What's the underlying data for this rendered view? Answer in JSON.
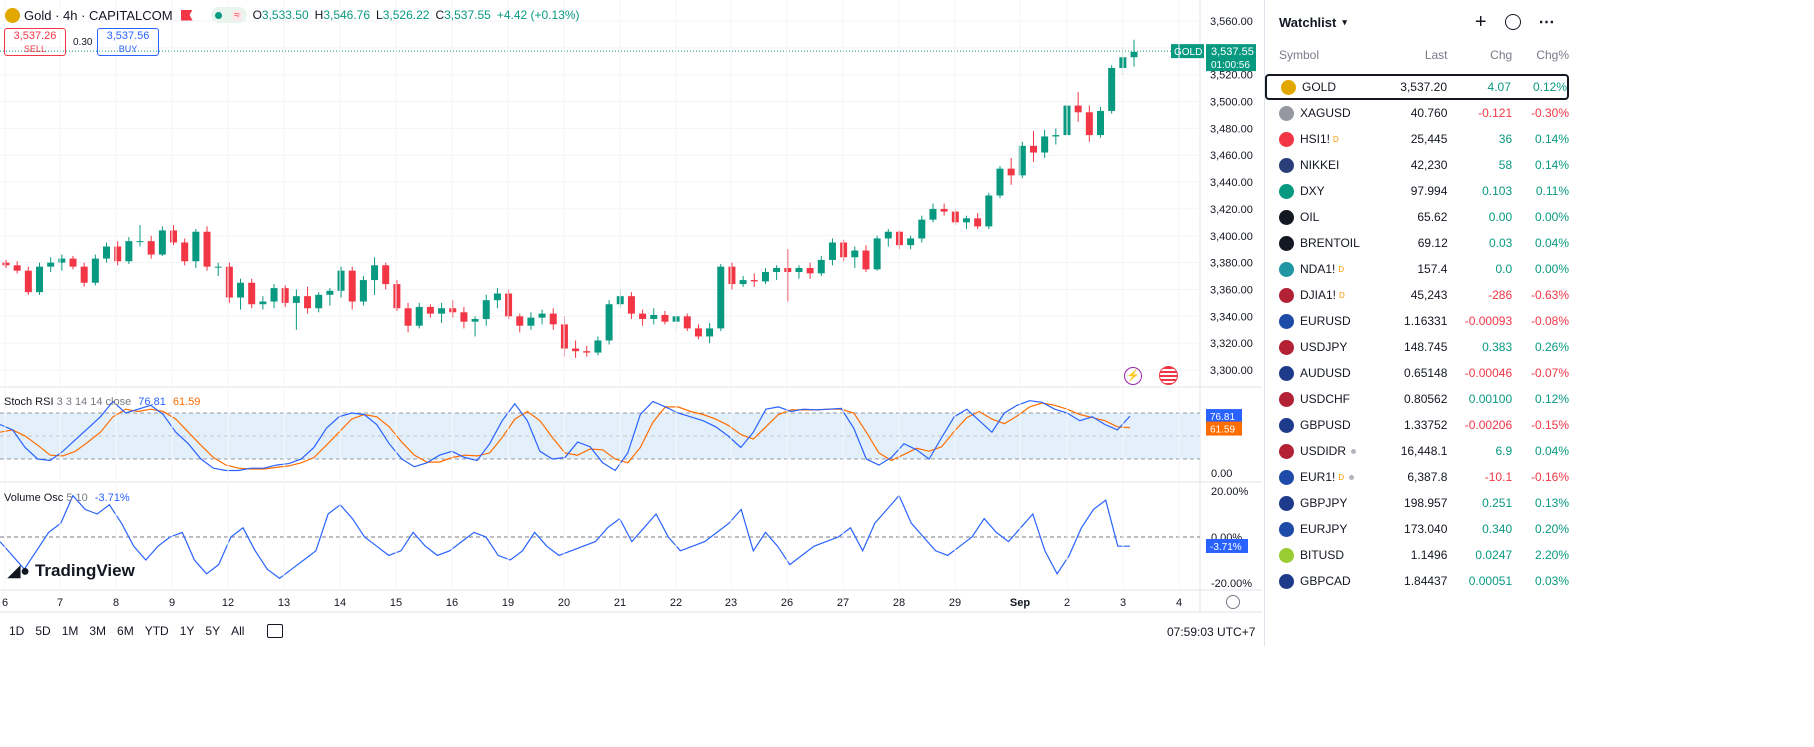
{
  "header": {
    "title": "Gold · 4h · CAPITALCOM",
    "open_label": "O",
    "open": "3,533.50",
    "high_label": "H",
    "high": "3,546.76",
    "low_label": "L",
    "low": "3,526.22",
    "close_label": "C",
    "close": "3,537.55",
    "change": "+4.42 (+0.13%)"
  },
  "trade": {
    "sell_price": "3,537.26",
    "sell_label": "SELL",
    "spread": "0.30",
    "buy_price": "3,537.56",
    "buy_label": "BUY"
  },
  "price_axis": {
    "ticks": [
      "3,560.00",
      "3,540.00",
      "3,520.00",
      "3,500.00",
      "3,480.00",
      "3,460.00",
      "3,440.00",
      "3,420.00",
      "3,400.00",
      "3,380.00",
      "3,360.00",
      "3,340.00",
      "3,320.00",
      "3,300.00"
    ],
    "last_symbol": "GOLD",
    "last_price": "3,537.55",
    "countdown": "01:00:56"
  },
  "stoch": {
    "label": "Stoch RSI",
    "params": "3 3 14 14 close",
    "k": "76.81",
    "d": "61.59",
    "zero": "0.00"
  },
  "vol": {
    "label": "Volume Osc",
    "params": "5 10",
    "value": "-3.71%",
    "top": "20.00%",
    "mid": "0.00%",
    "bottom": "-20.00%"
  },
  "brand": "TradingView",
  "time_axis": [
    "6",
    "7",
    "8",
    "9",
    "12",
    "13",
    "14",
    "15",
    "16",
    "19",
    "20",
    "21",
    "22",
    "23",
    "26",
    "27",
    "28",
    "29",
    "Sep",
    "2",
    "3",
    "4"
  ],
  "timeframes": [
    "1D",
    "5D",
    "1M",
    "3M",
    "6M",
    "YTD",
    "1Y",
    "5Y",
    "All"
  ],
  "clock": "07:59:03 UTC+7",
  "watchlist": {
    "title": "Watchlist",
    "columns": {
      "symbol": "Symbol",
      "last": "Last",
      "chg": "Chg",
      "pct": "Chg%"
    },
    "rows": [
      {
        "sym": "GOLD",
        "last": "3,537.20",
        "chg": "4.07",
        "pct": "0.12%",
        "dir": "up",
        "icon": "#e0a800",
        "selected": true
      },
      {
        "sym": "XAGUSD",
        "last": "40.760",
        "chg": "-0.121",
        "pct": "-0.30%",
        "dir": "dn",
        "icon": "#9598a1"
      },
      {
        "sym": "HSI1!",
        "last": "25,445",
        "chg": "36",
        "pct": "0.14%",
        "dir": "up",
        "icon": "#f23645",
        "sup": "D"
      },
      {
        "sym": "NIKKEI",
        "last": "42,230",
        "chg": "58",
        "pct": "0.14%",
        "dir": "up",
        "icon": "#2a3f7a"
      },
      {
        "sym": "DXY",
        "last": "97.994",
        "chg": "0.103",
        "pct": "0.11%",
        "dir": "up",
        "icon": "#089981"
      },
      {
        "sym": "OIL",
        "last": "65.62",
        "chg": "0.00",
        "pct": "0.00%",
        "dir": "up",
        "icon": "#131722"
      },
      {
        "sym": "BRENTOIL",
        "last": "69.12",
        "chg": "0.03",
        "pct": "0.04%",
        "dir": "up",
        "icon": "#131722"
      },
      {
        "sym": "NDA1!",
        "last": "157.4",
        "chg": "0.0",
        "pct": "0.00%",
        "dir": "up",
        "icon": "#2196a3",
        "sup": "D"
      },
      {
        "sym": "DJIA1!",
        "last": "45,243",
        "chg": "-286",
        "pct": "-0.63%",
        "dir": "dn",
        "icon": "#b22234",
        "sup": "D"
      },
      {
        "sym": "EURUSD",
        "last": "1.16331",
        "chg": "-0.00093",
        "pct": "-0.08%",
        "dir": "dn",
        "icon": "#1e4aa8"
      },
      {
        "sym": "USDJPY",
        "last": "148.745",
        "chg": "0.383",
        "pct": "0.26%",
        "dir": "up",
        "icon": "#b22234"
      },
      {
        "sym": "AUDUSD",
        "last": "0.65148",
        "chg": "-0.00046",
        "pct": "-0.07%",
        "dir": "dn",
        "icon": "#1e3a8a"
      },
      {
        "sym": "USDCHF",
        "last": "0.80562",
        "chg": "0.00100",
        "pct": "0.12%",
        "dir": "up",
        "icon": "#b22234"
      },
      {
        "sym": "GBPUSD",
        "last": "1.33752",
        "chg": "-0.00206",
        "pct": "-0.15%",
        "dir": "dn",
        "icon": "#1e3a8a"
      },
      {
        "sym": "USDIDR",
        "last": "16,448.1",
        "chg": "6.9",
        "pct": "0.04%",
        "dir": "up",
        "icon": "#b22234",
        "dot": true
      },
      {
        "sym": "EUR1!",
        "last": "6,387.8",
        "chg": "-10.1",
        "pct": "-0.16%",
        "dir": "dn",
        "icon": "#1e4aa8",
        "sup": "D",
        "dot": true
      },
      {
        "sym": "GBPJPY",
        "last": "198.957",
        "chg": "0.251",
        "pct": "0.13%",
        "dir": "up",
        "icon": "#1e3a8a"
      },
      {
        "sym": "EURJPY",
        "last": "173.040",
        "chg": "0.340",
        "pct": "0.20%",
        "dir": "up",
        "icon": "#1e4aa8"
      },
      {
        "sym": "BITUSD",
        "last": "1.1496",
        "chg": "0.0247",
        "pct": "2.20%",
        "dir": "up",
        "icon": "#9acd32"
      },
      {
        "sym": "GBPCAD",
        "last": "1.84437",
        "chg": "0.00051",
        "pct": "0.03%",
        "dir": "up",
        "icon": "#1e3a8a"
      }
    ]
  },
  "colors": {
    "up": "#089981",
    "down": "#f23645",
    "k_line": "#2962ff",
    "d_line": "#ff6d00",
    "band": "#e3f0fc"
  },
  "chart_data": {
    "type": "candlestick",
    "ylim": [
      3290,
      3565
    ],
    "candles": [
      [
        3380,
        3382,
        3376,
        3378
      ],
      [
        3378,
        3381,
        3372,
        3374
      ],
      [
        3374,
        3377,
        3356,
        3358
      ],
      [
        3358,
        3380,
        3356,
        3377
      ],
      [
        3377,
        3384,
        3373,
        3380
      ],
      [
        3380,
        3386,
        3374,
        3383
      ],
      [
        3383,
        3385,
        3375,
        3377
      ],
      [
        3377,
        3380,
        3362,
        3365
      ],
      [
        3365,
        3386,
        3363,
        3383
      ],
      [
        3383,
        3395,
        3380,
        3392
      ],
      [
        3392,
        3396,
        3378,
        3381
      ],
      [
        3381,
        3399,
        3379,
        3396
      ],
      [
        3396,
        3408,
        3392,
        3396
      ],
      [
        3396,
        3400,
        3383,
        3386
      ],
      [
        3386,
        3407,
        3385,
        3404
      ],
      [
        3404,
        3408,
        3393,
        3395
      ],
      [
        3395,
        3398,
        3378,
        3381
      ],
      [
        3381,
        3405,
        3376,
        3403
      ],
      [
        3403,
        3407,
        3374,
        3377
      ],
      [
        3377,
        3380,
        3370,
        3377
      ],
      [
        3377,
        3380,
        3350,
        3354
      ],
      [
        3354,
        3368,
        3345,
        3365
      ],
      [
        3365,
        3368,
        3346,
        3349
      ],
      [
        3349,
        3355,
        3345,
        3351
      ],
      [
        3351,
        3364,
        3346,
        3361
      ],
      [
        3361,
        3363,
        3347,
        3350
      ],
      [
        3350,
        3360,
        3330,
        3355
      ],
      [
        3355,
        3362,
        3342,
        3346
      ],
      [
        3346,
        3358,
        3343,
        3356
      ],
      [
        3356,
        3361,
        3348,
        3359
      ],
      [
        3359,
        3377,
        3354,
        3374
      ],
      [
        3374,
        3377,
        3345,
        3351
      ],
      [
        3351,
        3370,
        3348,
        3367
      ],
      [
        3367,
        3384,
        3356,
        3378
      ],
      [
        3378,
        3380,
        3360,
        3364
      ],
      [
        3364,
        3367,
        3344,
        3346
      ],
      [
        3346,
        3350,
        3328,
        3333
      ],
      [
        3333,
        3350,
        3331,
        3347
      ],
      [
        3347,
        3349,
        3339,
        3342
      ],
      [
        3342,
        3350,
        3335,
        3346
      ],
      [
        3346,
        3352,
        3339,
        3343
      ],
      [
        3343,
        3347,
        3331,
        3336
      ],
      [
        3336,
        3340,
        3325,
        3338
      ],
      [
        3338,
        3356,
        3333,
        3352
      ],
      [
        3352,
        3361,
        3346,
        3357
      ],
      [
        3357,
        3360,
        3338,
        3340
      ],
      [
        3340,
        3342,
        3328,
        3333
      ],
      [
        3333,
        3343,
        3330,
        3339
      ],
      [
        3339,
        3345,
        3334,
        3342
      ],
      [
        3342,
        3346,
        3330,
        3334
      ],
      [
        3334,
        3340,
        3310,
        3316
      ],
      [
        3316,
        3322,
        3309,
        3314
      ],
      [
        3314,
        3318,
        3310,
        3313
      ],
      [
        3313,
        3325,
        3311,
        3322
      ],
      [
        3322,
        3352,
        3319,
        3349
      ],
      [
        3349,
        3360,
        3346,
        3355
      ],
      [
        3355,
        3358,
        3338,
        3342
      ],
      [
        3342,
        3345,
        3333,
        3338
      ],
      [
        3338,
        3346,
        3334,
        3341
      ],
      [
        3341,
        3344,
        3334,
        3336
      ],
      [
        3336,
        3343,
        3329,
        3340
      ],
      [
        3340,
        3342,
        3329,
        3331
      ],
      [
        3331,
        3334,
        3323,
        3325
      ],
      [
        3325,
        3335,
        3320,
        3331
      ],
      [
        3331,
        3379,
        3329,
        3377
      ],
      [
        3377,
        3380,
        3360,
        3364
      ],
      [
        3364,
        3370,
        3362,
        3367
      ],
      [
        3367,
        3372,
        3362,
        3366
      ],
      [
        3366,
        3376,
        3364,
        3373
      ],
      [
        3373,
        3378,
        3367,
        3376
      ],
      [
        3376,
        3390,
        3351,
        3373
      ],
      [
        3373,
        3378,
        3368,
        3376
      ],
      [
        3376,
        3380,
        3368,
        3372
      ],
      [
        3372,
        3385,
        3370,
        3382
      ],
      [
        3382,
        3398,
        3378,
        3395
      ],
      [
        3395,
        3397,
        3381,
        3384
      ],
      [
        3384,
        3392,
        3376,
        3389
      ],
      [
        3389,
        3393,
        3373,
        3375
      ],
      [
        3375,
        3400,
        3374,
        3398
      ],
      [
        3398,
        3405,
        3392,
        3403
      ],
      [
        3403,
        3404,
        3390,
        3393
      ],
      [
        3393,
        3400,
        3390,
        3398
      ],
      [
        3398,
        3415,
        3395,
        3412
      ],
      [
        3412,
        3424,
        3410,
        3420
      ],
      [
        3420,
        3424,
        3415,
        3418
      ],
      [
        3418,
        3420,
        3408,
        3410
      ],
      [
        3410,
        3415,
        3405,
        3413
      ],
      [
        3413,
        3417,
        3405,
        3407
      ],
      [
        3407,
        3432,
        3405,
        3430
      ],
      [
        3430,
        3452,
        3428,
        3450
      ],
      [
        3450,
        3458,
        3438,
        3445
      ],
      [
        3445,
        3470,
        3443,
        3467
      ],
      [
        3467,
        3478,
        3455,
        3462
      ],
      [
        3462,
        3479,
        3458,
        3474
      ],
      [
        3474,
        3480,
        3468,
        3475
      ],
      [
        3475,
        3500,
        3473,
        3497
      ],
      [
        3497,
        3507,
        3485,
        3492
      ],
      [
        3492,
        3497,
        3470,
        3475
      ],
      [
        3475,
        3496,
        3473,
        3493
      ],
      [
        3493,
        3527,
        3491,
        3525
      ],
      [
        3525,
        3540,
        3520,
        3533
      ],
      [
        3533,
        3546,
        3526,
        3537
      ]
    ],
    "stoch_k": [
      65,
      58,
      35,
      20,
      18,
      30,
      45,
      60,
      75,
      95,
      80,
      85,
      90,
      78,
      55,
      40,
      20,
      8,
      5,
      5,
      8,
      8,
      12,
      14,
      20,
      35,
      60,
      75,
      80,
      78,
      65,
      40,
      20,
      10,
      15,
      25,
      30,
      22,
      18,
      40,
      70,
      92,
      70,
      30,
      20,
      22,
      42,
      36,
      15,
      5,
      28,
      78,
      95,
      88,
      80,
      75,
      70,
      62,
      50,
      35,
      55,
      85,
      88,
      82,
      85,
      84,
      85,
      86,
      60,
      20,
      12,
      22,
      40,
      32,
      20,
      48,
      75,
      85,
      70,
      55,
      80,
      90,
      96,
      94,
      85,
      80,
      70,
      75,
      65,
      58,
      76
    ],
    "stoch_d": [
      55,
      58,
      50,
      38,
      25,
      24,
      30,
      42,
      55,
      75,
      85,
      82,
      85,
      82,
      72,
      55,
      38,
      22,
      12,
      8,
      7,
      7,
      9,
      11,
      15,
      22,
      38,
      55,
      72,
      78,
      75,
      62,
      42,
      25,
      16,
      16,
      22,
      25,
      24,
      28,
      48,
      72,
      82,
      70,
      48,
      28,
      25,
      33,
      32,
      20,
      15,
      35,
      68,
      88,
      88,
      82,
      78,
      72,
      64,
      52,
      46,
      62,
      78,
      84,
      84,
      84,
      85,
      85,
      80,
      55,
      28,
      18,
      26,
      34,
      30,
      36,
      56,
      74,
      82,
      72,
      66,
      76,
      88,
      93,
      90,
      85,
      78,
      74,
      70,
      62,
      61
    ],
    "volume_osc": [
      -2,
      -8,
      -14,
      -6,
      2,
      6,
      18,
      12,
      10,
      14,
      6,
      -4,
      -10,
      -4,
      0,
      2,
      -10,
      -16,
      -12,
      0,
      4,
      -6,
      -14,
      -18,
      -14,
      -10,
      -6,
      10,
      14,
      8,
      0,
      -4,
      -8,
      -6,
      2,
      -4,
      -8,
      -6,
      -2,
      2,
      0,
      -8,
      -10,
      -6,
      2,
      -4,
      -8,
      -6,
      -4,
      -2,
      4,
      8,
      -2,
      4,
      10,
      0,
      -6,
      -4,
      -2,
      2,
      6,
      12,
      -6,
      2,
      -4,
      -12,
      -8,
      -4,
      -2,
      0,
      4,
      -6,
      6,
      12,
      18,
      6,
      0,
      -6,
      -8,
      -4,
      0,
      8,
      2,
      -2,
      4,
      10,
      -6,
      -16,
      -8,
      4,
      12,
      16,
      -4,
      -4
    ]
  }
}
